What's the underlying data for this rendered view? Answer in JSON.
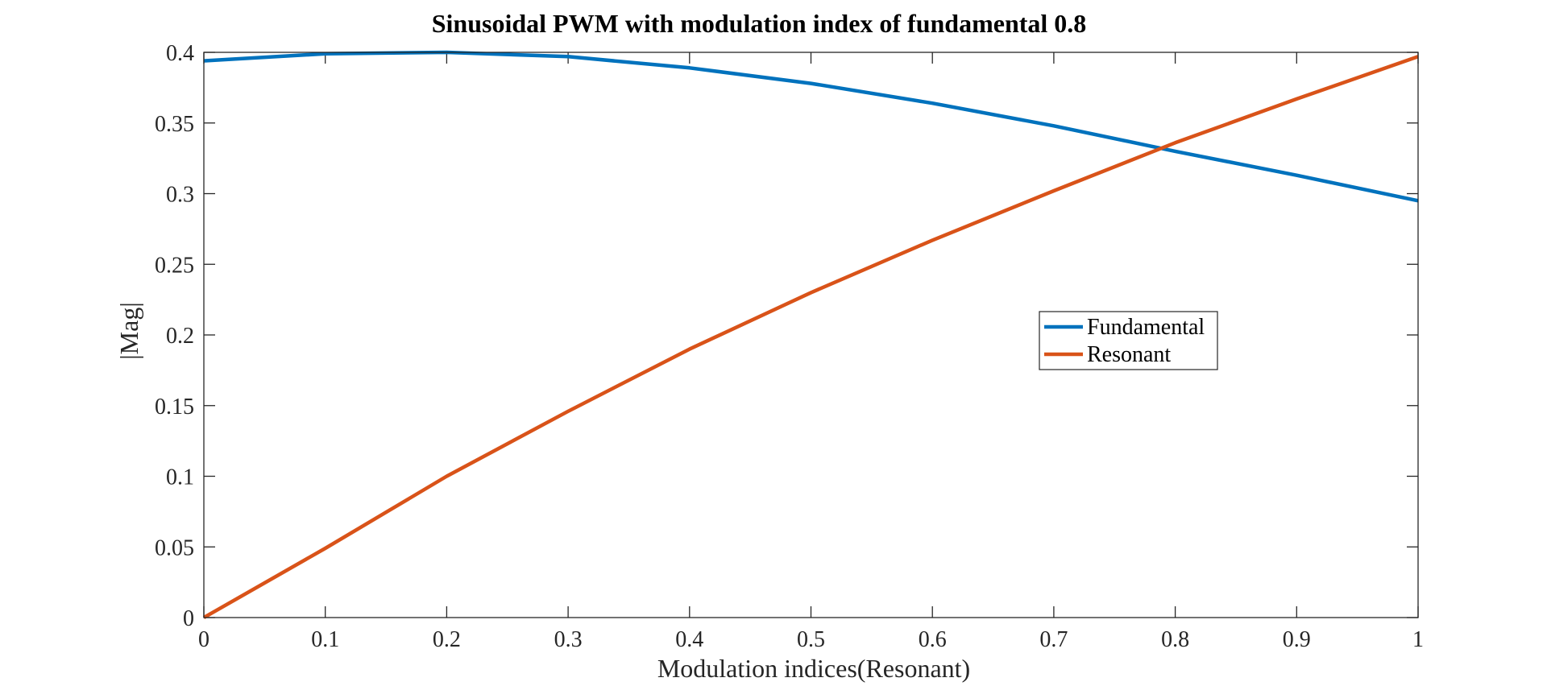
{
  "chart_data": {
    "type": "line",
    "title": "Sinusoidal PWM with modulation index of fundamental 0.8",
    "xlabel": "Modulation indices(Resonant)",
    "ylabel": "|Mag|",
    "xlim": [
      0,
      1
    ],
    "ylim": [
      0,
      0.4
    ],
    "xticks": [
      0,
      0.1,
      0.2,
      0.3,
      0.4,
      0.5,
      0.6,
      0.7,
      0.8,
      0.9,
      1
    ],
    "xtick_labels": [
      "0",
      "0.1",
      "0.2",
      "0.3",
      "0.4",
      "0.5",
      "0.6",
      "0.7",
      "0.8",
      "0.9",
      "1"
    ],
    "yticks": [
      0,
      0.05,
      0.1,
      0.15,
      0.2,
      0.25,
      0.3,
      0.35,
      0.4
    ],
    "ytick_labels": [
      "0",
      "0.05",
      "0.1",
      "0.15",
      "0.2",
      "0.25",
      "0.3",
      "0.35",
      "0.4"
    ],
    "grid": false,
    "legend_position": "center-right",
    "x": [
      0,
      0.1,
      0.2,
      0.3,
      0.4,
      0.5,
      0.6,
      0.7,
      0.8,
      0.9,
      1
    ],
    "series": [
      {
        "name": "Fundamental",
        "color": "#0072BD",
        "values": [
          0.394,
          0.399,
          0.4,
          0.397,
          0.389,
          0.378,
          0.364,
          0.348,
          0.33,
          0.313,
          0.295
        ]
      },
      {
        "name": "Resonant",
        "color": "#D95319",
        "values": [
          0,
          0.049,
          0.1,
          0.146,
          0.19,
          0.23,
          0.267,
          0.302,
          0.336,
          0.367,
          0.397
        ]
      }
    ]
  }
}
